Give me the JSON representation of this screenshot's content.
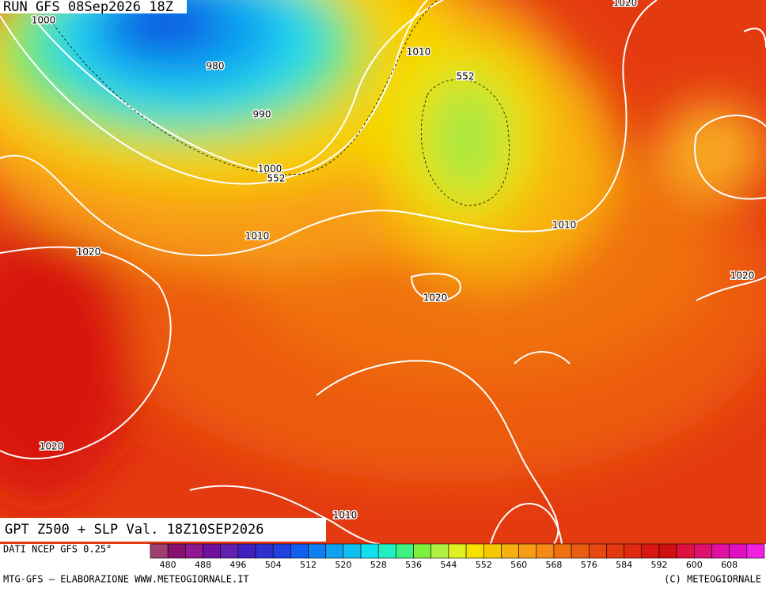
{
  "header": {
    "run": "RUN GFS 08Sep2026 18Z"
  },
  "map": {
    "contour_labels": [
      "1000",
      "980",
      "990",
      "1000",
      "552",
      "1010",
      "552",
      "1010",
      "1020",
      "1020",
      "1010",
      "1020",
      "1020",
      "1010",
      "1020"
    ]
  },
  "caption": "GPT Z500 + SLP Val. 18Z10SEP2026",
  "footer": {
    "source": "DATI NCEP GFS 0.25°",
    "credit": "MTG-GFS – ELABORAZIONE WWW.METEOGIORNALE.IT",
    "copyright": "(C) METEOGIORNALE"
  },
  "colorbar": {
    "labels": [
      "480",
      "488",
      "496",
      "504",
      "512",
      "520",
      "528",
      "536",
      "544",
      "552",
      "560",
      "568",
      "576",
      "584",
      "592",
      "600",
      "608"
    ],
    "colors": [
      "#a04070",
      "#8a1070",
      "#901890",
      "#7010a0",
      "#6020b0",
      "#4020c0",
      "#3030d0",
      "#2040e0",
      "#1060f0",
      "#1080f0",
      "#10a0f0",
      "#10c0f0",
      "#10e0f0",
      "#20f0c0",
      "#40f080",
      "#80f040",
      "#b0f040",
      "#e0f020",
      "#f8e000",
      "#f8c800",
      "#f8b010",
      "#f89c18",
      "#f58a15",
      "#f07010",
      "#ec5c10",
      "#e84810",
      "#e43810",
      "#e02810",
      "#d81810",
      "#d01010",
      "#e01040",
      "#e01070",
      "#e010a0",
      "#e010c0",
      "#f020e0"
    ]
  }
}
